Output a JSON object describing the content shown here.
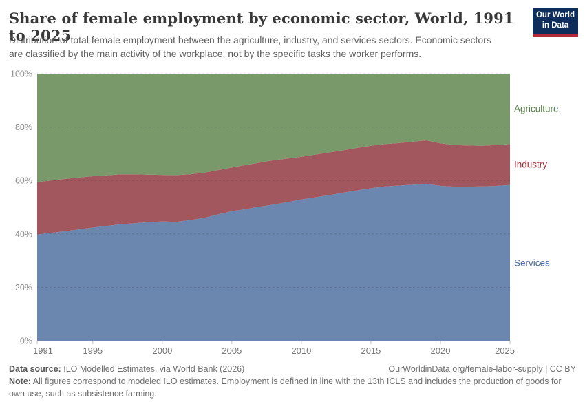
{
  "header": {
    "title": "Share of female employment by economic sector, World, 1991 to 2025",
    "subtitle": "Distribution of total female employment between the agriculture, industry, and services sectors. Economic sectors are classified by the main activity of the workplace, not by the specific tasks the worker performs.",
    "logo": {
      "line1": "Our World",
      "line2": "in Data",
      "bg_color": "#0e2d5b",
      "stripe_color": "#b5293a"
    }
  },
  "chart_data": {
    "type": "area",
    "stacked": true,
    "unit": "%",
    "x": [
      1991,
      1992,
      1993,
      1994,
      1995,
      1996,
      1997,
      1998,
      1999,
      2000,
      2001,
      2002,
      2003,
      2004,
      2005,
      2006,
      2007,
      2008,
      2009,
      2010,
      2011,
      2012,
      2013,
      2014,
      2015,
      2016,
      2017,
      2018,
      2019,
      2020,
      2021,
      2022,
      2023,
      2024,
      2025
    ],
    "series": [
      {
        "name": "Services",
        "color": "#6c87af",
        "label_color": "#4868a3",
        "values": [
          39.8,
          40.4,
          41.0,
          41.7,
          42.4,
          43.0,
          43.6,
          44.0,
          44.4,
          44.7,
          44.5,
          45.2,
          46.0,
          47.3,
          48.5,
          49.3,
          50.2,
          51.0,
          51.9,
          52.9,
          53.7,
          54.5,
          55.4,
          56.3,
          57.1,
          57.8,
          58.1,
          58.4,
          58.7,
          58.0,
          57.7,
          57.7,
          57.8,
          58.0,
          58.3
        ]
      },
      {
        "name": "Industry",
        "color": "#a2575f",
        "label_color": "#9e2e3a",
        "values": [
          19.6,
          19.6,
          19.6,
          19.4,
          19.2,
          18.9,
          18.7,
          18.3,
          17.8,
          17.4,
          17.5,
          17.1,
          16.9,
          16.6,
          16.4,
          16.5,
          16.5,
          16.6,
          16.3,
          16.0,
          16.0,
          16.0,
          15.9,
          15.9,
          15.9,
          15.8,
          15.9,
          16.1,
          16.3,
          15.9,
          15.6,
          15.4,
          15.2,
          15.3,
          15.3
        ]
      },
      {
        "name": "Agriculture",
        "color": "#79996a",
        "label_color": "#568047",
        "values": [
          40.6,
          40.0,
          39.4,
          38.9,
          38.4,
          38.1,
          37.7,
          37.7,
          37.8,
          37.9,
          38.0,
          37.7,
          37.1,
          36.1,
          35.1,
          34.2,
          33.3,
          32.4,
          31.8,
          31.1,
          30.3,
          29.5,
          28.7,
          27.8,
          27.0,
          26.4,
          26.0,
          25.5,
          25.0,
          26.1,
          26.7,
          26.9,
          27.0,
          26.7,
          26.4
        ]
      }
    ],
    "ylim": [
      0,
      100
    ],
    "yticks": [
      {
        "value": 0,
        "label": "0%"
      },
      {
        "value": 20,
        "label": "20%"
      },
      {
        "value": 40,
        "label": "40%"
      },
      {
        "value": 60,
        "label": "60%"
      },
      {
        "value": 80,
        "label": "80%"
      },
      {
        "value": 100,
        "label": "100%"
      }
    ],
    "xticks": [
      1991,
      1995,
      2000,
      2005,
      2010,
      2015,
      2020,
      2025
    ],
    "grid": "horizontal-dashed",
    "legend_position": "right-edge-labels"
  },
  "footer": {
    "data_source_label": "Data source:",
    "data_source_text": "ILO Modelled Estimates, via World Bank (2026)",
    "link_text": "OurWorldinData.org/female-labor-supply | CC BY",
    "note_label": "Note:",
    "note_text": "All figures correspond to modeled ILO estimates. Employment is defined in line with the 13th ICLS and includes the production of goods for own use, such as subsistence farming."
  }
}
